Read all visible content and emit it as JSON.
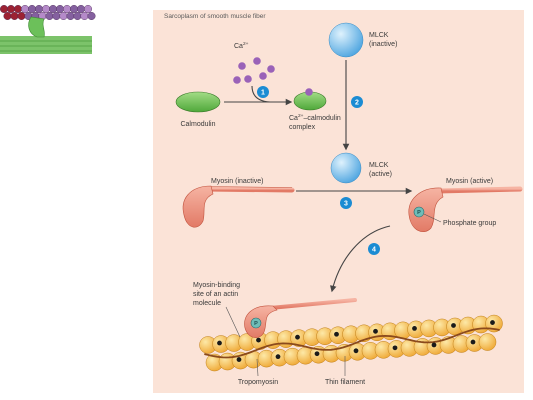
{
  "figure": {
    "title": "Sarcoplasm of smooth muscle fiber",
    "ca_label": {
      "base": "Ca",
      "sup": "2+"
    },
    "calmodulin_label": "Calmodulin",
    "complex_label": {
      "base": "Ca",
      "sup": "2+",
      "line1_rest": "–calmodulin",
      "line2": "complex"
    },
    "mlck_inactive": {
      "line1": "MLCK",
      "line2": "(inactive)"
    },
    "mlck_active": {
      "line1": "MLCK",
      "line2": "(active)"
    },
    "myosin_inactive_label": "Myosin (inactive)",
    "myosin_active_label": "Myosin (active)",
    "phosphate_label": "Phosphate group",
    "phosphate_symbol": "P",
    "binding_site_label": [
      "Myosin-binding",
      "site of an actin",
      "molecule"
    ],
    "tropomyosin_label": "Tropomyosin",
    "thin_filament_label": "Thin filament",
    "steps": [
      "1",
      "2",
      "3",
      "4"
    ]
  },
  "colors": {
    "panel": "#fbe3d7",
    "calmodulin": "#4fa83a",
    "calcium": "#9a62b8",
    "mlck": "#4aa3df",
    "myosin": "#e27a66",
    "step_badge": "#1b8cd3",
    "phosphate": "#6fbdb8",
    "actin": "#eea22a",
    "tropomyosin": "#8b4a1c"
  }
}
